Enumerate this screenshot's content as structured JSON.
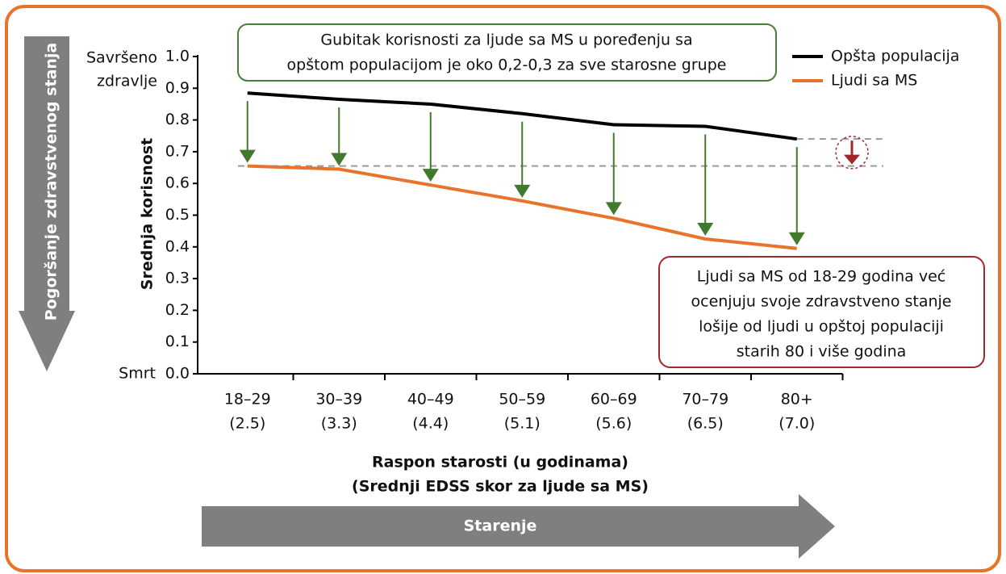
{
  "chart_data": {
    "type": "line",
    "categories": [
      "18–29",
      "30–39",
      "40–49",
      "50–59",
      "60–69",
      "70–79",
      "80+"
    ],
    "sublabels": [
      "(2.5)",
      "(3.3)",
      "(4.4)",
      "(5.1)",
      "(5.6)",
      "(6.5)",
      "(7.0)"
    ],
    "series": [
      {
        "name": "Opšta populacija",
        "color": "#000000",
        "values": [
          0.885,
          0.865,
          0.85,
          0.82,
          0.785,
          0.78,
          0.74
        ]
      },
      {
        "name": "Ljudi sa MS",
        "color": "#e8732a",
        "values": [
          0.655,
          0.645,
          0.595,
          0.545,
          0.49,
          0.425,
          0.395
        ]
      }
    ],
    "ylim": [
      0,
      1
    ],
    "yticks": [
      {
        "value": 0,
        "label": "0.0"
      },
      0.1,
      0.2,
      0.3,
      0.4,
      0.5,
      0.6,
      0.7,
      0.8,
      0.9,
      {
        "value": 1,
        "label": "1.0"
      }
    ],
    "ylabel": "Srednja korisnost",
    "xlabel": [
      "Raspon starosti (u godinama)",
      "(Srednji EDSS skor za ljude sa MS)"
    ],
    "top_label": [
      "Savršeno",
      "zdravlje"
    ],
    "bottom_label": "Smrt",
    "left_arrow": "Pogoršanje zdravstvenog stanja",
    "bottom_arrow": "Starenje",
    "annotation_top": [
      "Gubitak korisnosti za ljude sa MS u poređenju sa",
      "opštom populacijom je oko 0,2-0,3 za sve starosne grupe"
    ],
    "annotation_bottom": [
      "Ljudi sa MS od 18-29 godina već",
      "ocenjuju svoje zdravstveno stanje",
      "lošije od ljudi u opštoj populaciji",
      "starih 80 i više godina"
    ],
    "arrow_color": "#3f7a2e"
  }
}
